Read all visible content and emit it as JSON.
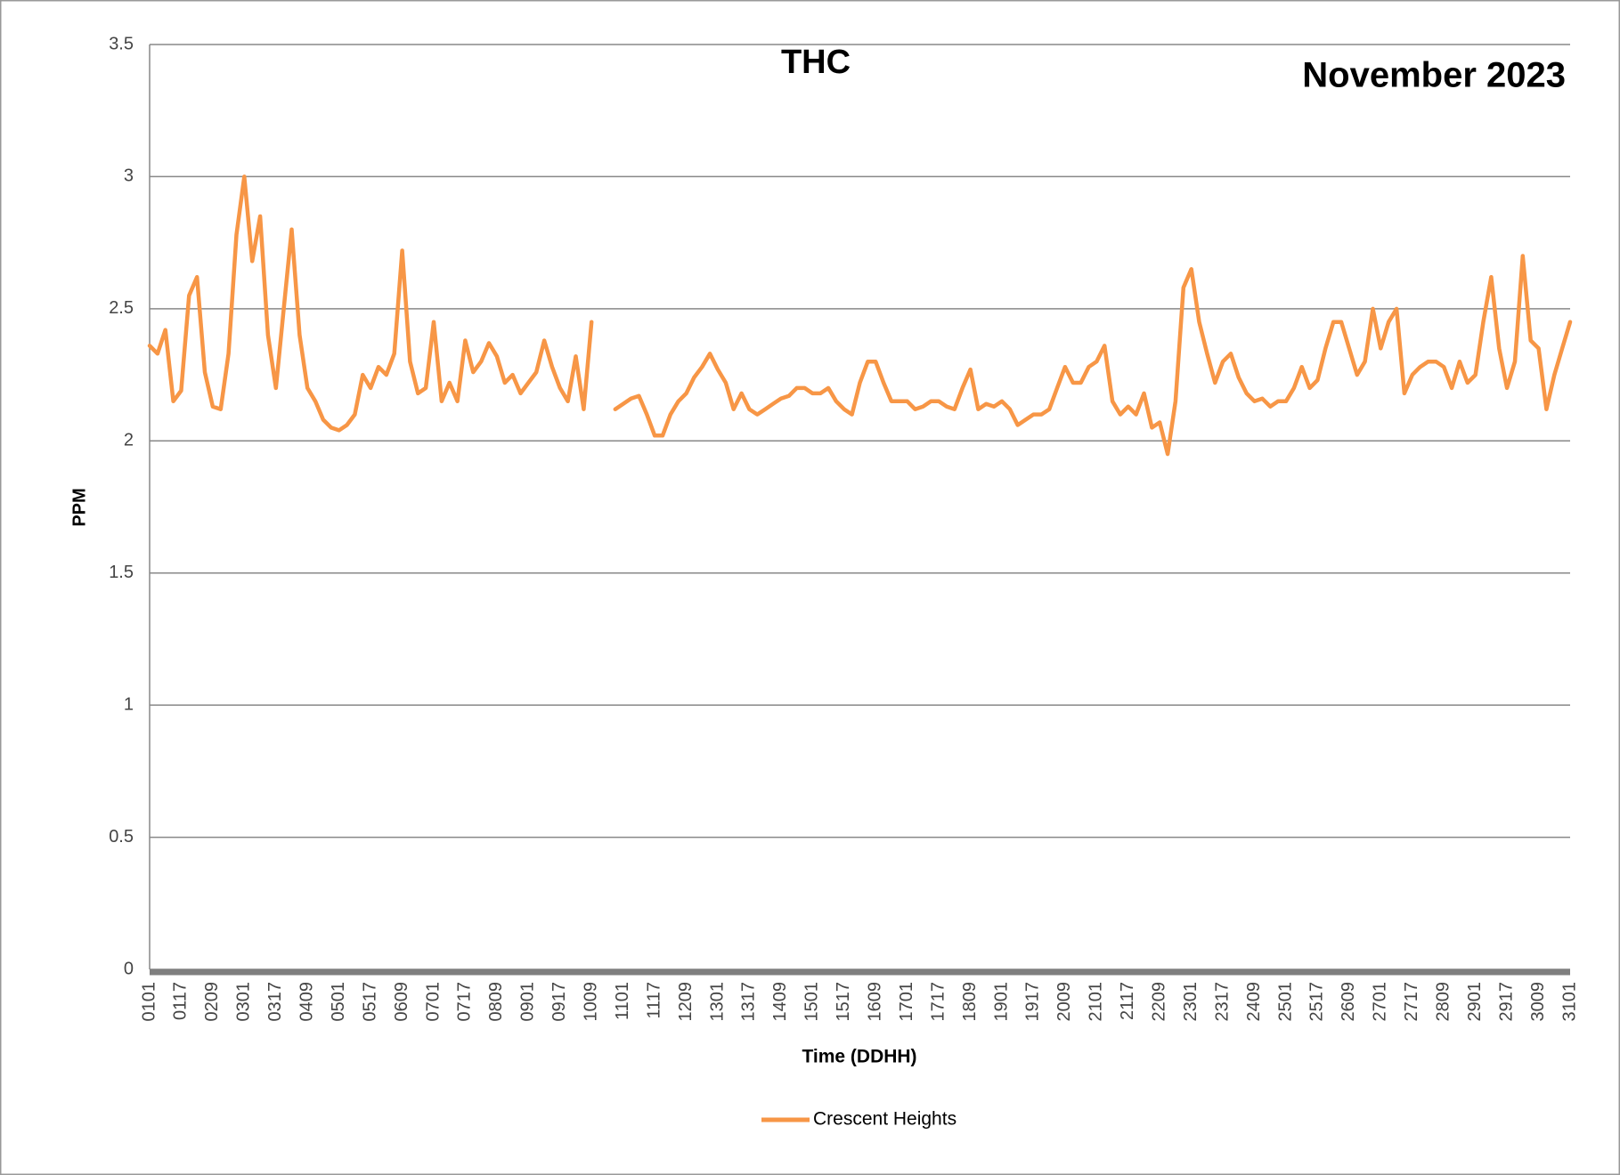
{
  "chart_data": {
    "type": "line",
    "title": "THC",
    "subtitle": "November 2023",
    "x_label": "Time (DDHH)",
    "y_label": "PPM",
    "categories": [
      "0101",
      null,
      null,
      null,
      "0117",
      null,
      null,
      null,
      "0209",
      null,
      null,
      null,
      "0301",
      null,
      null,
      null,
      "0317",
      null,
      null,
      null,
      "0409",
      null,
      null,
      null,
      "0501",
      null,
      null,
      null,
      "0517",
      null,
      null,
      null,
      "0609",
      null,
      null,
      null,
      "0701",
      null,
      null,
      null,
      "0717",
      null,
      null,
      null,
      "0809",
      null,
      null,
      null,
      "0901",
      null,
      null,
      null,
      "0917",
      null,
      null,
      null,
      "1009",
      null,
      null,
      null,
      "1101",
      null,
      null,
      null,
      "1117",
      null,
      null,
      null,
      "1209",
      null,
      null,
      null,
      "1301",
      null,
      null,
      null,
      "1317",
      null,
      null,
      null,
      "1409",
      null,
      null,
      null,
      "1501",
      null,
      null,
      null,
      "1517",
      null,
      null,
      null,
      "1609",
      null,
      null,
      null,
      "1701",
      null,
      null,
      null,
      "1717",
      null,
      null,
      null,
      "1809",
      null,
      null,
      null,
      "1901",
      null,
      null,
      null,
      "1917",
      null,
      null,
      null,
      "2009",
      null,
      null,
      null,
      "2101",
      null,
      null,
      null,
      "2117",
      null,
      null,
      null,
      "2209",
      null,
      null,
      null,
      "2301",
      null,
      null,
      null,
      "2317",
      null,
      null,
      null,
      "2409",
      null,
      null,
      null,
      "2501",
      null,
      null,
      null,
      "2517",
      null,
      null,
      null,
      "2609",
      null,
      null,
      null,
      "2701",
      null,
      null,
      null,
      "2717",
      null,
      null,
      null,
      "2809",
      null,
      null,
      null,
      "2901",
      null,
      null,
      null,
      "2917",
      null,
      null,
      null,
      "3009",
      null,
      null,
      null,
      "3101"
    ],
    "series": [
      {
        "name": "Crescent Heights",
        "color": "#f79646",
        "values": [
          2.36,
          2.33,
          2.42,
          2.15,
          2.19,
          2.55,
          2.62,
          2.26,
          2.13,
          2.12,
          2.33,
          2.78,
          3.0,
          2.68,
          2.85,
          2.4,
          2.2,
          2.5,
          2.8,
          2.4,
          2.2,
          2.15,
          2.08,
          2.05,
          2.04,
          2.06,
          2.1,
          2.25,
          2.2,
          2.28,
          2.25,
          2.33,
          2.72,
          2.3,
          2.18,
          2.2,
          2.45,
          2.15,
          2.22,
          2.15,
          2.38,
          2.26,
          2.3,
          2.37,
          2.32,
          2.22,
          2.25,
          2.18,
          2.22,
          2.26,
          2.38,
          2.28,
          2.2,
          2.15,
          2.32,
          2.12,
          2.45,
          null,
          null,
          2.12,
          2.14,
          2.16,
          2.17,
          2.1,
          2.02,
          2.02,
          2.1,
          2.15,
          2.18,
          2.24,
          2.28,
          2.33,
          2.27,
          2.22,
          2.12,
          2.18,
          2.12,
          2.1,
          2.12,
          2.14,
          2.16,
          2.17,
          2.2,
          2.2,
          2.18,
          2.18,
          2.2,
          2.15,
          2.12,
          2.1,
          2.22,
          2.3,
          2.3,
          2.22,
          2.15,
          2.15,
          2.15,
          2.12,
          2.13,
          2.15,
          2.15,
          2.13,
          2.12,
          2.2,
          2.27,
          2.12,
          2.14,
          2.13,
          2.15,
          2.12,
          2.06,
          2.08,
          2.1,
          2.1,
          2.12,
          2.2,
          2.28,
          2.22,
          2.22,
          2.28,
          2.3,
          2.36,
          2.15,
          2.1,
          2.13,
          2.1,
          2.18,
          2.05,
          2.07,
          1.95,
          2.15,
          2.58,
          2.65,
          2.45,
          2.33,
          2.22,
          2.3,
          2.33,
          2.24,
          2.18,
          2.15,
          2.16,
          2.13,
          2.15,
          2.15,
          2.2,
          2.28,
          2.2,
          2.23,
          2.35,
          2.45,
          2.45,
          2.35,
          2.25,
          2.3,
          2.5,
          2.35,
          2.45,
          2.5,
          2.18,
          2.25,
          2.28,
          2.3,
          2.3,
          2.28,
          2.2,
          2.3,
          2.22,
          2.25,
          2.45,
          2.62,
          2.35,
          2.2,
          2.3,
          2.7,
          2.38,
          2.35,
          2.12,
          2.25,
          2.35,
          2.45
        ]
      }
    ],
    "ylim": [
      0,
      3.5
    ],
    "yticks": [
      0,
      0.5,
      1,
      1.5,
      2,
      2.5,
      3,
      3.5
    ],
    "grid": true,
    "legend": "bottom"
  }
}
